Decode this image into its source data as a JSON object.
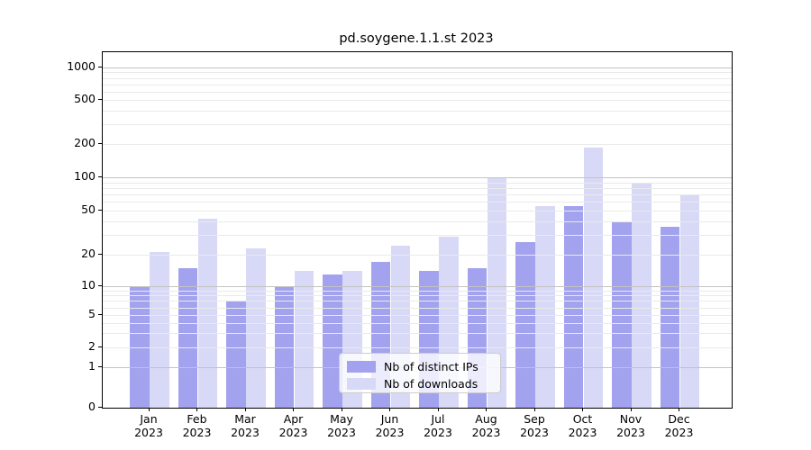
{
  "title": "pd.soygene.1.1.st 2023",
  "chart_data": {
    "type": "bar",
    "title": "pd.soygene.1.1.st 2023",
    "categories": [
      "Jan 2023",
      "Feb 2023",
      "Mar 2023",
      "Apr 2023",
      "May 2023",
      "Jun 2023",
      "Jul 2023",
      "Aug 2023",
      "Sep 2023",
      "Oct 2023",
      "Nov 2023",
      "Dec 2023"
    ],
    "series": [
      {
        "name": "Nb of distinct IPs",
        "color": "#a2a2ee",
        "values": [
          10,
          15,
          7,
          10,
          13,
          17,
          14,
          15,
          26,
          55,
          40,
          36
        ]
      },
      {
        "name": "Nb of downloads",
        "color": "#d8d8f7",
        "values": [
          21,
          42,
          23,
          14,
          14,
          24,
          29,
          100,
          55,
          185,
          90,
          70
        ]
      }
    ],
    "y_ticks": [
      0,
      1,
      2,
      5,
      10,
      20,
      50,
      100,
      200,
      500,
      1000
    ],
    "y_minor_gridlines": [
      2,
      3,
      4,
      5,
      6,
      7,
      8,
      9,
      20,
      30,
      40,
      50,
      60,
      70,
      80,
      90,
      200,
      300,
      400,
      500,
      600,
      700,
      800,
      900
    ],
    "y_major_gridlines": [
      1,
      10,
      100,
      1000
    ],
    "ylim": [
      0,
      1000
    ],
    "y_scale": "log(1+x)",
    "grid": true,
    "legend_position": "bottom-center"
  }
}
